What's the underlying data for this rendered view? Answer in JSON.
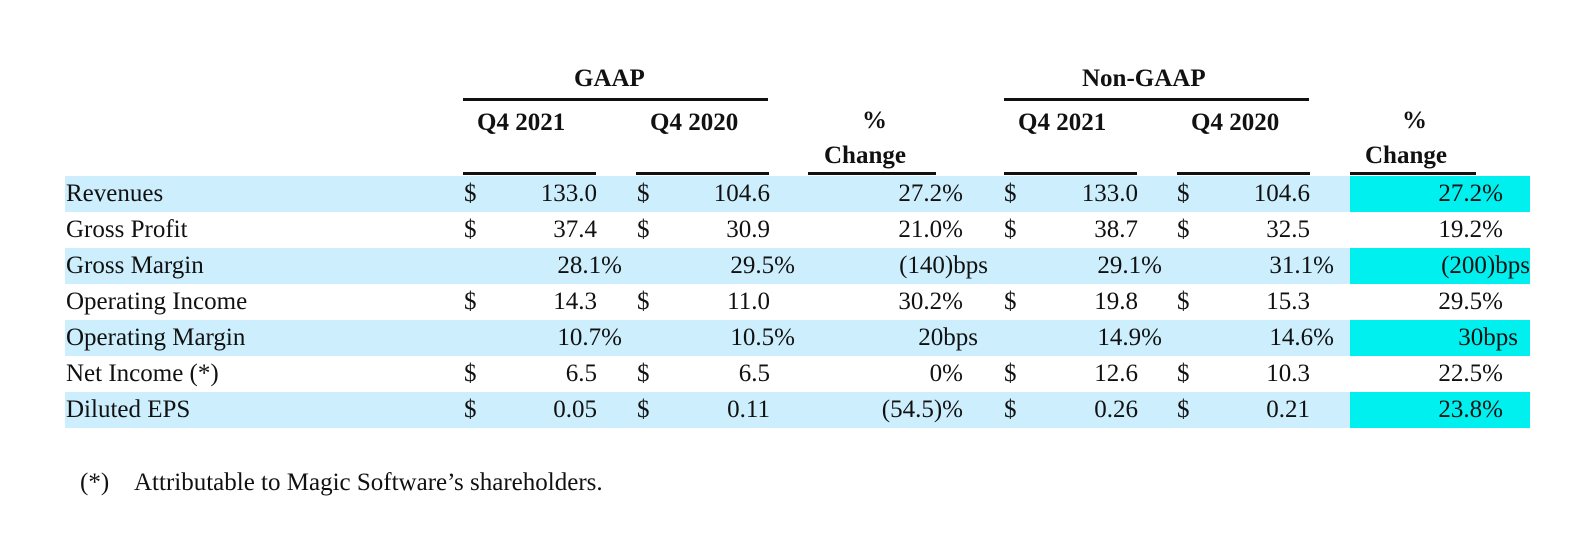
{
  "headers": {
    "gaap": "GAAP",
    "non_gaap": "Non-GAAP",
    "q4_2021": "Q4 2021",
    "q4_2020": "Q4 2020",
    "pct": "%",
    "change": "Change"
  },
  "currency_symbol": "$",
  "rows": [
    {
      "label": "Revenues",
      "gaap_dollar": true,
      "g21": "133.0",
      "g20": "104.6",
      "gchg": "27.2%",
      "ng_dollar": true,
      "n21": "133.0",
      "n20": "104.6",
      "nchg": "27.2%",
      "highlight": true,
      "shaded": true
    },
    {
      "label": "Gross Profit",
      "gaap_dollar": true,
      "g21": "37.4",
      "g20": "30.9",
      "gchg": "21.0%",
      "ng_dollar": true,
      "n21": "38.7",
      "n20": "32.5",
      "nchg": "19.2%",
      "highlight": false,
      "shaded": false
    },
    {
      "label": "Gross Margin",
      "gaap_dollar": false,
      "g21": "28.1%",
      "g20": "29.5%",
      "gchg": "(140)bps",
      "ng_dollar": false,
      "n21": "29.1%",
      "n20": "31.1%",
      "nchg": "(200)bps",
      "highlight": true,
      "shaded": true
    },
    {
      "label": "Operating Income",
      "gaap_dollar": true,
      "g21": "14.3",
      "g20": "11.0",
      "gchg": "30.2%",
      "ng_dollar": true,
      "n21": "19.8",
      "n20": "15.3",
      "nchg": "29.5%",
      "highlight": false,
      "shaded": false
    },
    {
      "label": "Operating Margin",
      "gaap_dollar": false,
      "g21": "10.7%",
      "g20": "10.5%",
      "gchg": "20bps",
      "ng_dollar": false,
      "n21": "14.9%",
      "n20": "14.6%",
      "nchg": "30bps",
      "highlight": true,
      "shaded": true
    },
    {
      "label": "Net Income (*)",
      "gaap_dollar": true,
      "g21": "6.5",
      "g20": "6.5",
      "gchg": "0%",
      "ng_dollar": true,
      "n21": "12.6",
      "n20": "10.3",
      "nchg": "22.5%",
      "highlight": false,
      "shaded": false
    },
    {
      "label": "Diluted EPS",
      "gaap_dollar": true,
      "g21": "0.05",
      "g20": "0.11",
      "gchg": "(54.5)%",
      "ng_dollar": true,
      "n21": "0.26",
      "n20": "0.21",
      "nchg": "23.8%",
      "highlight": true,
      "shaded": true
    }
  ],
  "footnote": {
    "mark": "(*)",
    "text": "Attributable to Magic Software’s shareholders."
  },
  "colors": {
    "row_shade": "#cdeefc",
    "highlight": "#00f0f0",
    "text": "#111111"
  }
}
